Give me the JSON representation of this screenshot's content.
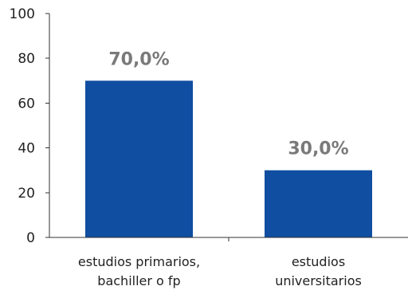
{
  "chart_data": {
    "type": "bar",
    "categories": [
      [
        "estudios primarios,",
        "bachiller o fp"
      ],
      [
        "estudios",
        "universitarios"
      ]
    ],
    "values": [
      70.0,
      30.0
    ],
    "data_labels": [
      "70,0%",
      "30,0%"
    ],
    "title": "",
    "xlabel": "",
    "ylabel": "",
    "ylim": [
      0,
      100
    ],
    "yticks": [
      0,
      20,
      40,
      60,
      80,
      100
    ],
    "grid": false,
    "legend": "none",
    "bar_color": "#0f4ea0"
  }
}
